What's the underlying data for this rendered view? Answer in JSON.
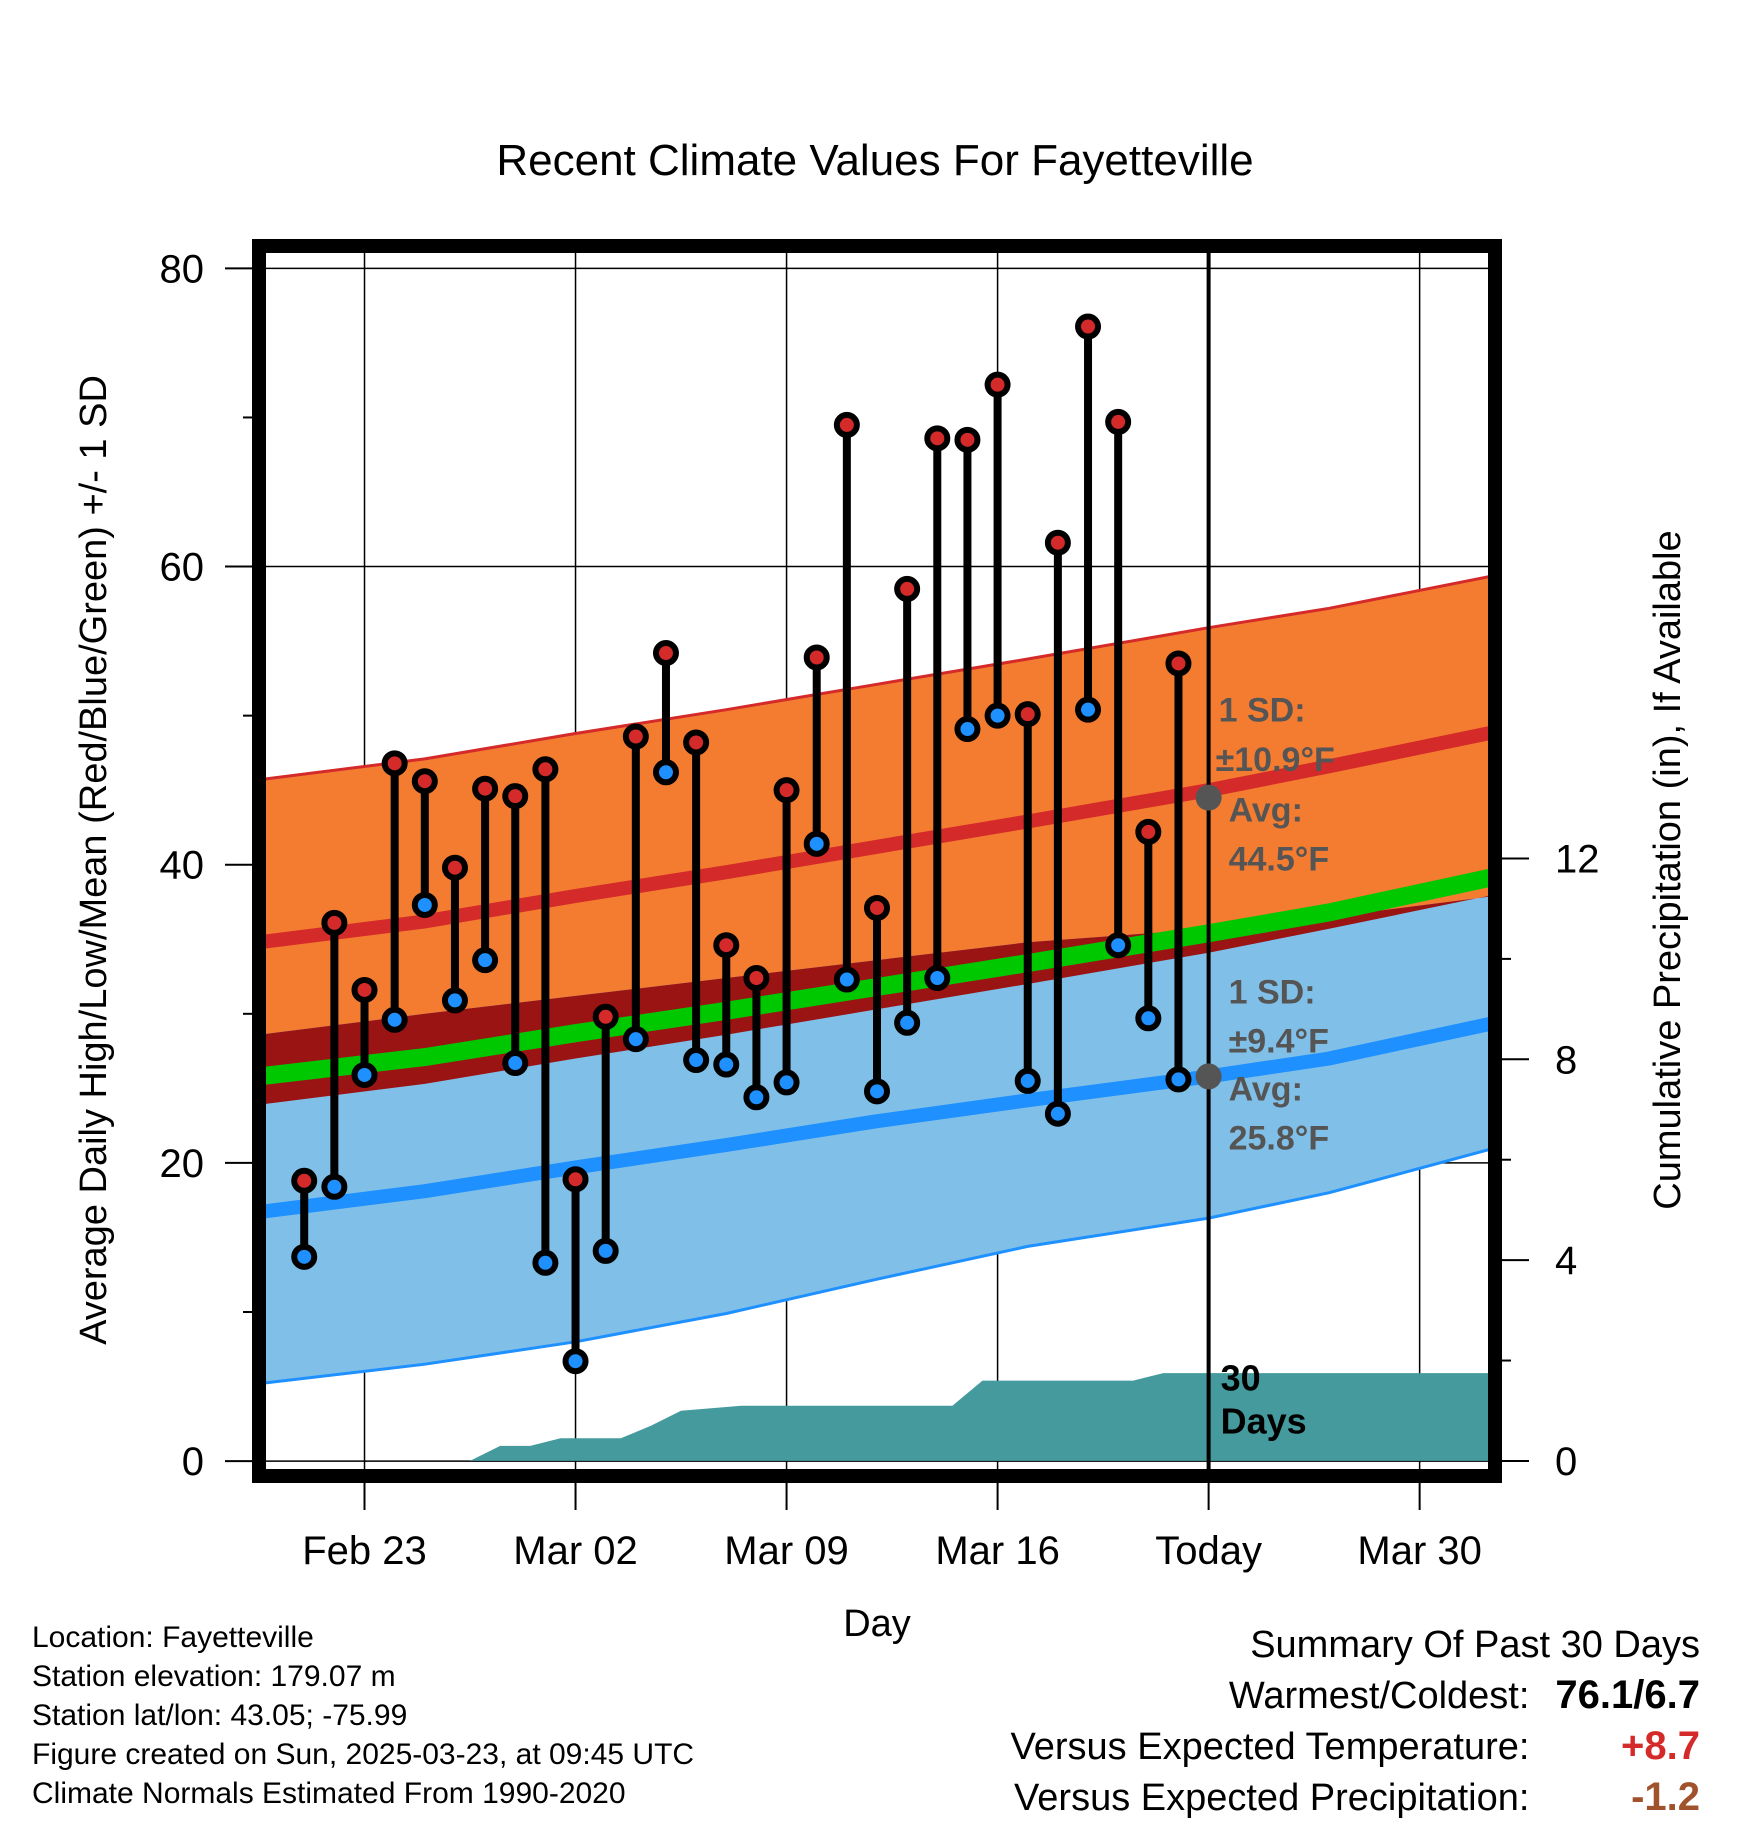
{
  "chart_data": {
    "type": "line",
    "title": "Recent Climate Values For Fayetteville",
    "xlabel": "Day",
    "ylabel": "Average Daily High/Low/Mean (Red/Blue/Green) +/- 1 SD",
    "y2label": "Cumulative Precipitation (in), If Available",
    "ylim": [
      -1,
      81.5
    ],
    "y2lim": [
      -0.3,
      24.2
    ],
    "yticks": [
      0,
      20,
      40,
      60,
      80
    ],
    "y2ticks": [
      0,
      4,
      8,
      12
    ],
    "xlim": [
      -0.5,
      40.5
    ],
    "x_tick_positions": [
      3,
      10,
      17,
      24,
      31,
      38
    ],
    "x_tick_labels": [
      "Feb 23",
      "Mar 02",
      "Mar 09",
      "Mar 16",
      "Today",
      "Mar 30"
    ],
    "grid": true,
    "today_index": 31,
    "days_label": "30\nDays",
    "observed": {
      "high": [
        18.8,
        36.1,
        31.6,
        46.8,
        45.6,
        39.8,
        45.1,
        44.6,
        46.4,
        18.9,
        29.8,
        48.6,
        54.2,
        48.2,
        34.6,
        32.4,
        45.0,
        53.9,
        69.5,
        37.1,
        58.5,
        68.6,
        68.5,
        72.2,
        50.1,
        61.6,
        76.1,
        69.7,
        42.2,
        53.5
      ],
      "low": [
        13.7,
        18.4,
        25.9,
        29.6,
        37.3,
        30.9,
        33.6,
        26.7,
        13.3,
        6.7,
        14.1,
        28.3,
        46.2,
        26.9,
        26.6,
        24.4,
        25.4,
        41.4,
        32.3,
        24.8,
        29.4,
        32.4,
        49.1,
        50.0,
        25.5,
        23.3,
        50.4,
        34.6,
        29.7,
        25.6
      ]
    },
    "normals": {
      "x": [
        -0.5,
        5,
        10,
        15,
        20,
        25,
        31,
        35,
        40.5
      ],
      "high_mean": [
        34.8,
        36.2,
        37.9,
        39.5,
        41.2,
        42.9,
        45.0,
        46.6,
        48.9
      ],
      "high_sd_upper": [
        45.7,
        47.1,
        48.8,
        50.4,
        52.1,
        53.8,
        55.9,
        57.2,
        59.4
      ],
      "high_sd_lower": [
        23.9,
        25.3,
        27.0,
        28.6,
        30.3,
        32.0,
        34.1,
        35.7,
        38.0
      ],
      "low_mean": [
        16.7,
        18.1,
        19.7,
        21.2,
        22.8,
        24.2,
        25.8,
        27.0,
        29.4
      ],
      "low_sd_upper": [
        28.6,
        30.0,
        31.2,
        32.4,
        33.6,
        34.8,
        35.7,
        36.5,
        37.9
      ],
      "low_sd_lower": [
        5.2,
        6.5,
        8.0,
        9.9,
        12.2,
        14.4,
        16.3,
        18.0,
        21.0
      ],
      "mean_temp": [
        25.8,
        27.1,
        28.7,
        30.2,
        31.8,
        33.4,
        35.4,
        36.8,
        39.2
      ]
    },
    "precip_cumulative": {
      "x": [
        -0.5,
        5.5,
        6.5,
        7.5,
        8.5,
        9.5,
        11.5,
        12.5,
        13.5,
        15.5,
        22.5,
        23.5,
        28.5,
        29.5,
        40.5
      ],
      "values": [
        0,
        0,
        0,
        0.3,
        0.3,
        0.45,
        0.45,
        0.7,
        1.0,
        1.1,
        1.1,
        1.6,
        1.6,
        1.75,
        1.75
      ]
    },
    "annotations": {
      "high": {
        "sd_label": "1 SD:",
        "sd_value": "±10.9°F",
        "avg_label": "Avg:",
        "avg_value": "44.5°F",
        "avg": 44.5
      },
      "low": {
        "sd_label": "1 SD:",
        "sd_value": "±9.4°F",
        "avg_label": "Avg:",
        "avg_value": "25.8°F",
        "avg": 25.8
      }
    },
    "colors": {
      "high_band": "#f47c30",
      "high_line": "#d42a2a",
      "low_band": "#80c0e8",
      "low_line": "#1e90ff",
      "overlap_band": "#9b1414",
      "mean_line": "#00c800",
      "precip": "#459a9e",
      "high_dot": "#d42a2a",
      "low_dot": "#1e90ff"
    }
  },
  "info": {
    "location": "Location: Fayetteville",
    "elevation": "Station elevation: 179.07 m",
    "latlon": "Station lat/lon: 43.05; -75.99",
    "created": "Figure created on Sun, 2025-03-23, at 09:45 UTC",
    "normals": "Climate Normals Estimated From 1990-2020"
  },
  "summary": {
    "title": "Summary Of Past 30 Days",
    "warmest_label": "Warmest/Coldest:",
    "warmest_value": "76.1/6.7",
    "temp_label": "Versus Expected Temperature:",
    "temp_value": "+8.7",
    "temp_color": "#d42a2a",
    "precip_label": "Versus Expected Precipitation:",
    "precip_value": "-1.2",
    "precip_color": "#a0522d"
  }
}
